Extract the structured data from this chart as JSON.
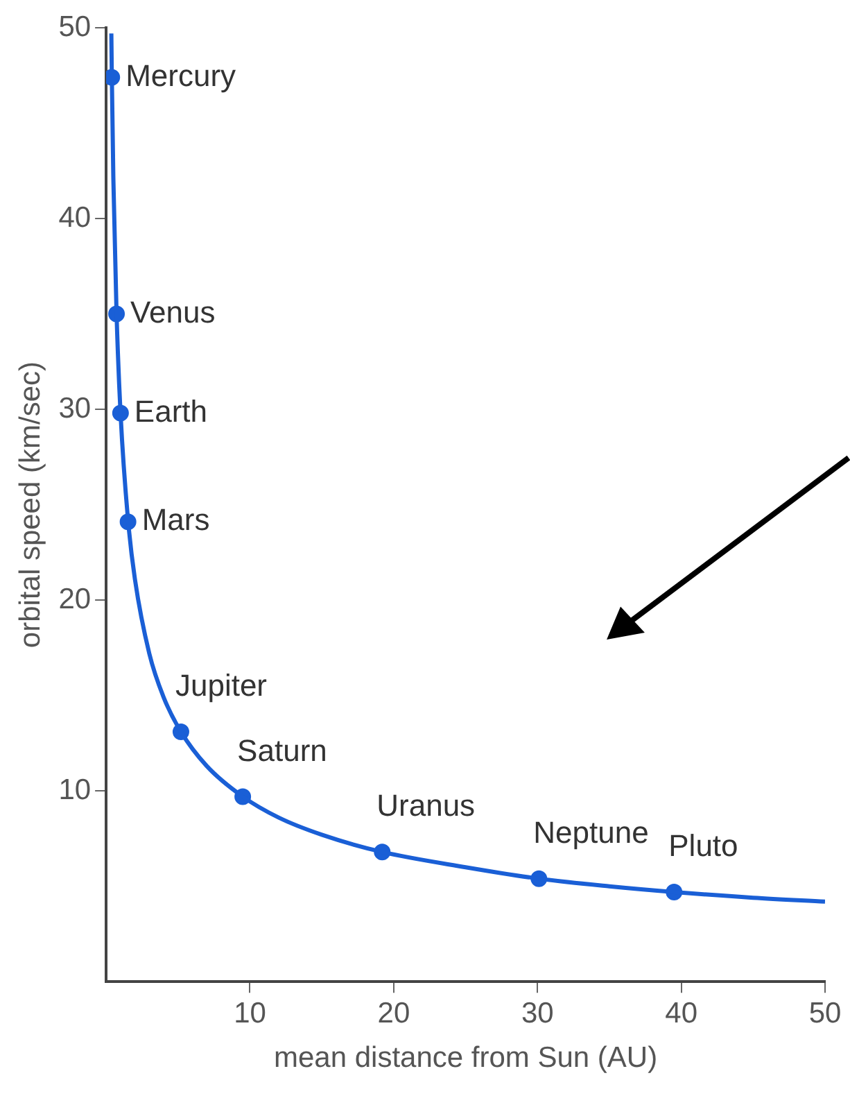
{
  "chart_data": {
    "type": "line",
    "xlabel": "mean distance from Sun (AU)",
    "ylabel": "orbital speed (km/sec)",
    "xlim": [
      0,
      50
    ],
    "ylim": [
      0,
      50
    ],
    "xticks": [
      10,
      20,
      30,
      40,
      50
    ],
    "yticks": [
      10,
      20,
      30,
      40,
      50
    ],
    "legend": false,
    "marker": "none",
    "line_style": "solid",
    "series": [
      {
        "color": "#1a5fd6",
        "x": [
          0.36,
          0.39,
          0.5,
          0.72,
          1,
          1.52,
          2,
          3,
          4,
          5.2,
          7,
          9.5,
          12,
          15,
          19.2,
          25,
          30.1,
          35,
          39.5,
          45,
          50
        ],
        "values": [
          49.7,
          47.7,
          42.1,
          35.1,
          29.8,
          24.2,
          21.1,
          17.2,
          14.9,
          13.1,
          11.3,
          9.7,
          8.6,
          7.7,
          6.8,
          6.0,
          5.4,
          5.0,
          4.7,
          4.4,
          4.2
        ]
      },
      {
        "type": "scatter",
        "color": "#1a5fd6",
        "marker": "circle",
        "x": [
          0.39,
          0.72,
          1,
          1.52,
          5.2,
          9.5,
          19.2,
          30.1,
          39.5
        ],
        "values": [
          47.4,
          35.0,
          29.8,
          24.1,
          13.1,
          9.7,
          6.8,
          5.4,
          4.7
        ]
      }
    ],
    "annotations": [
      {
        "text": "Mercury",
        "x": 0.39,
        "y": 47.4
      },
      {
        "text": "Venus",
        "x": 0.72,
        "y": 35.0
      },
      {
        "text": "Earth",
        "x": 1,
        "y": 29.8
      },
      {
        "text": "Mars",
        "x": 1.52,
        "y": 24.1
      },
      {
        "text": "Jupiter",
        "x": 5.2,
        "y": 13.1
      },
      {
        "text": "Saturn",
        "x": 9.5,
        "y": 9.7
      },
      {
        "text": "Uranus",
        "x": 19.2,
        "y": 6.8
      },
      {
        "text": "Neptune",
        "x": 30.1,
        "y": 5.4
      },
      {
        "text": "Pluto",
        "x": 39.5,
        "y": 4.7
      }
    ]
  }
}
